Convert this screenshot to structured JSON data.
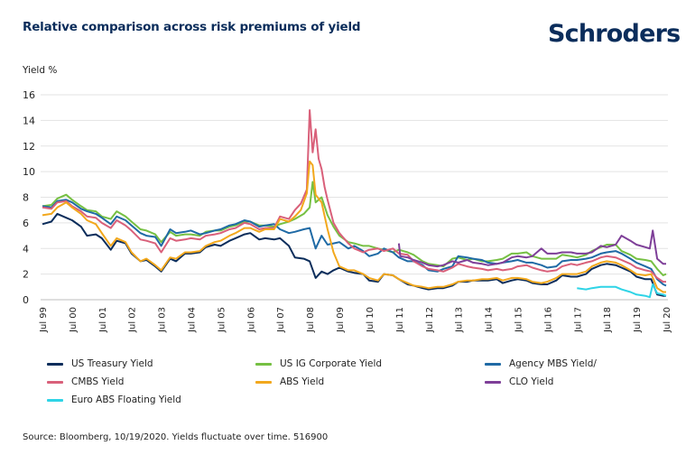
{
  "header": {
    "title": "Relative comparison across risk premiums of yield",
    "logo": "Schroders"
  },
  "footer": {
    "source": "Source: Bloomberg, 10/19/2020. Yields fluctuate over time. 516900"
  },
  "chart_data": {
    "type": "line",
    "title": "Relative comparison across risk premiums of yield",
    "xlabel": "",
    "ylabel": "Yield %",
    "ylim": [
      0,
      16
    ],
    "xlim": [
      1999.5,
      2020.5
    ],
    "yticks": [
      0,
      2,
      4,
      6,
      8,
      10,
      12,
      14,
      16
    ],
    "ytick_labels": [
      "0",
      "2",
      "4",
      "6",
      "8",
      "10",
      "12",
      "14",
      "16"
    ],
    "xticks": [
      1999.5,
      2000.5,
      2001.5,
      2002.5,
      2003.5,
      2004.5,
      2005.5,
      2006.5,
      2007.5,
      2008.5,
      2009.5,
      2010.5,
      2011.5,
      2012.5,
      2013.5,
      2014.5,
      2015.5,
      2016.5,
      2017.5,
      2018.5,
      2019.5,
      2020.5
    ],
    "xtick_labels": [
      "Jul 99",
      "Jul 00",
      "Jul 01",
      "Jul 02",
      "Jul 03",
      "Jul 04",
      "Jul 05",
      "Jul 06",
      "Jul 07",
      "Jul 08",
      "Jul 09",
      "Jul 10",
      "Jul 11",
      "Jul 12",
      "Jul 13",
      "Jul 14",
      "Jul 15",
      "Jul 16",
      "Jul 17",
      "Jul 18",
      "Jul 19",
      "Jul 20"
    ],
    "grid": "horizontal",
    "legend_position": "bottom",
    "series": [
      {
        "name": "US Treasury Yield",
        "color": "#0b2d5b",
        "x": [
          1999.5,
          1999.8,
          2000.0,
          2000.3,
          2000.5,
          2000.8,
          2001.0,
          2001.3,
          2001.5,
          2001.8,
          2002.0,
          2002.3,
          2002.5,
          2002.8,
          2003.0,
          2003.3,
          2003.5,
          2003.8,
          2004.0,
          2004.3,
          2004.5,
          2004.8,
          2005.0,
          2005.3,
          2005.5,
          2005.8,
          2006.0,
          2006.3,
          2006.5,
          2006.8,
          2007.0,
          2007.3,
          2007.5,
          2007.8,
          2008.0,
          2008.3,
          2008.5,
          2008.7,
          2008.9,
          2009.1,
          2009.3,
          2009.5,
          2009.8,
          2010.0,
          2010.3,
          2010.5,
          2010.8,
          2011.0,
          2011.3,
          2011.5,
          2011.8,
          2012.0,
          2012.3,
          2012.5,
          2012.8,
          2013.0,
          2013.3,
          2013.5,
          2013.8,
          2014.0,
          2014.3,
          2014.5,
          2014.8,
          2015.0,
          2015.3,
          2015.5,
          2015.8,
          2016.0,
          2016.3,
          2016.5,
          2016.8,
          2017.0,
          2017.3,
          2017.5,
          2017.8,
          2018.0,
          2018.3,
          2018.5,
          2018.8,
          2019.0,
          2019.3,
          2019.5,
          2019.8,
          2020.0,
          2020.2,
          2020.4,
          2020.5
        ],
        "values": [
          5.9,
          6.1,
          6.7,
          6.4,
          6.2,
          5.7,
          5.0,
          5.1,
          4.8,
          3.9,
          4.6,
          4.4,
          3.6,
          3.0,
          3.1,
          2.6,
          2.2,
          3.2,
          3.0,
          3.6,
          3.6,
          3.7,
          4.1,
          4.3,
          4.2,
          4.6,
          4.8,
          5.1,
          5.2,
          4.7,
          4.8,
          4.7,
          4.8,
          4.2,
          3.3,
          3.2,
          3.0,
          1.7,
          2.2,
          2.0,
          2.3,
          2.5,
          2.2,
          2.1,
          2.0,
          1.5,
          1.4,
          2.0,
          1.9,
          1.6,
          1.2,
          1.1,
          0.9,
          0.8,
          0.9,
          0.9,
          1.1,
          1.4,
          1.4,
          1.5,
          1.5,
          1.5,
          1.6,
          1.3,
          1.5,
          1.6,
          1.5,
          1.3,
          1.2,
          1.2,
          1.5,
          1.9,
          1.8,
          1.8,
          2.0,
          2.4,
          2.7,
          2.8,
          2.7,
          2.5,
          2.2,
          1.8,
          1.6,
          1.6,
          0.4,
          0.3,
          0.3
        ]
      },
      {
        "name": "US IG Corporate Yield",
        "color": "#76c043",
        "x": [
          1999.5,
          1999.8,
          2000.0,
          2000.3,
          2000.5,
          2000.8,
          2001.0,
          2001.3,
          2001.5,
          2001.8,
          2002.0,
          2002.3,
          2002.5,
          2002.8,
          2003.0,
          2003.3,
          2003.5,
          2003.8,
          2004.0,
          2004.3,
          2004.5,
          2004.8,
          2005.0,
          2005.3,
          2005.5,
          2005.8,
          2006.0,
          2006.3,
          2006.5,
          2006.8,
          2007.0,
          2007.3,
          2007.5,
          2007.8,
          2008.0,
          2008.3,
          2008.5,
          2008.6,
          2008.7,
          2008.9,
          2009.1,
          2009.3,
          2009.5,
          2009.8,
          2010.0,
          2010.3,
          2010.5,
          2010.8,
          2011.0,
          2011.3,
          2011.5,
          2011.8,
          2012.0,
          2012.3,
          2012.5,
          2012.8,
          2013.0,
          2013.3,
          2013.5,
          2013.8,
          2014.0,
          2014.3,
          2014.5,
          2014.8,
          2015.0,
          2015.3,
          2015.5,
          2015.8,
          2016.0,
          2016.3,
          2016.5,
          2016.8,
          2017.0,
          2017.3,
          2017.5,
          2017.8,
          2018.0,
          2018.3,
          2018.5,
          2018.8,
          2019.0,
          2019.3,
          2019.5,
          2019.8,
          2020.0,
          2020.2,
          2020.4,
          2020.5
        ],
        "values": [
          7.3,
          7.4,
          7.9,
          8.2,
          7.8,
          7.3,
          7.0,
          6.9,
          6.5,
          6.3,
          6.9,
          6.5,
          6.1,
          5.5,
          5.4,
          5.1,
          4.5,
          5.3,
          5.0,
          5.1,
          5.1,
          5.0,
          5.3,
          5.4,
          5.4,
          5.7,
          5.8,
          6.1,
          6.1,
          5.8,
          5.8,
          5.7,
          5.9,
          6.1,
          6.3,
          6.7,
          7.2,
          9.2,
          7.6,
          8.0,
          6.6,
          5.7,
          5.0,
          4.5,
          4.4,
          4.2,
          4.2,
          4.0,
          3.9,
          3.7,
          3.9,
          3.7,
          3.5,
          3.0,
          2.8,
          2.7,
          2.6,
          3.2,
          3.3,
          3.1,
          3.2,
          3.0,
          3.0,
          3.1,
          3.2,
          3.6,
          3.6,
          3.7,
          3.4,
          3.2,
          3.2,
          3.2,
          3.5,
          3.4,
          3.3,
          3.5,
          3.8,
          4.1,
          4.3,
          4.3,
          3.8,
          3.5,
          3.2,
          3.1,
          3.0,
          2.4,
          1.9,
          2.0
        ]
      },
      {
        "name": "Agency MBS Yield/",
        "color": "#1f6aa5",
        "x": [
          1999.5,
          1999.8,
          2000.0,
          2000.3,
          2000.5,
          2000.8,
          2001.0,
          2001.3,
          2001.5,
          2001.8,
          2002.0,
          2002.3,
          2002.5,
          2002.8,
          2003.0,
          2003.3,
          2003.5,
          2003.8,
          2004.0,
          2004.3,
          2004.5,
          2004.8,
          2005.0,
          2005.3,
          2005.5,
          2005.8,
          2006.0,
          2006.3,
          2006.5,
          2006.8,
          2007.0,
          2007.3,
          2007.5,
          2007.8,
          2008.0,
          2008.3,
          2008.5,
          2008.7,
          2008.9,
          2009.1,
          2009.3,
          2009.5,
          2009.8,
          2010.0,
          2010.3,
          2010.5,
          2010.8,
          2011.0,
          2011.3,
          2011.5,
          2011.8,
          2012.0,
          2012.3,
          2012.5,
          2012.8,
          2013.0,
          2013.3,
          2013.5,
          2013.8,
          2014.0,
          2014.3,
          2014.5,
          2014.8,
          2015.0,
          2015.3,
          2015.5,
          2015.8,
          2016.0,
          2016.3,
          2016.5,
          2016.8,
          2017.0,
          2017.3,
          2017.5,
          2017.8,
          2018.0,
          2018.3,
          2018.5,
          2018.8,
          2019.0,
          2019.3,
          2019.5,
          2019.8,
          2020.0,
          2020.2,
          2020.4,
          2020.5
        ],
        "values": [
          7.3,
          7.2,
          7.7,
          7.8,
          7.6,
          7.1,
          6.9,
          6.7,
          6.4,
          5.9,
          6.5,
          6.2,
          5.8,
          5.2,
          5.0,
          4.9,
          4.2,
          5.5,
          5.2,
          5.3,
          5.4,
          5.1,
          5.2,
          5.4,
          5.5,
          5.8,
          5.9,
          6.2,
          6.1,
          5.7,
          5.8,
          5.9,
          5.5,
          5.2,
          5.3,
          5.5,
          5.6,
          4.0,
          5.0,
          4.3,
          4.4,
          4.5,
          4.0,
          4.2,
          3.8,
          3.4,
          3.6,
          4.0,
          3.7,
          3.3,
          3.0,
          3.0,
          2.7,
          2.3,
          2.2,
          2.4,
          2.6,
          3.4,
          3.3,
          3.2,
          3.1,
          2.9,
          2.8,
          2.9,
          3.0,
          3.1,
          2.9,
          2.9,
          2.7,
          2.5,
          2.6,
          3.0,
          3.1,
          3.1,
          3.2,
          3.3,
          3.6,
          3.7,
          3.8,
          3.6,
          3.2,
          2.9,
          2.6,
          2.4,
          1.6,
          1.2,
          1.1
        ]
      },
      {
        "name": "CMBS Yield",
        "color": "#d9607a",
        "x": [
          1999.5,
          1999.8,
          2000.0,
          2000.3,
          2000.5,
          2000.8,
          2001.0,
          2001.3,
          2001.5,
          2001.8,
          2002.0,
          2002.3,
          2002.5,
          2002.8,
          2003.0,
          2003.3,
          2003.5,
          2003.8,
          2004.0,
          2004.3,
          2004.5,
          2004.8,
          2005.0,
          2005.3,
          2005.5,
          2005.8,
          2006.0,
          2006.3,
          2006.5,
          2006.8,
          2007.0,
          2007.3,
          2007.5,
          2007.8,
          2008.0,
          2008.2,
          2008.4,
          2008.5,
          2008.6,
          2008.7,
          2008.8,
          2008.9,
          2009.0,
          2009.1,
          2009.3,
          2009.5,
          2009.8,
          2010.0,
          2010.3,
          2010.5,
          2010.8,
          2011.0,
          2011.3,
          2011.5,
          2011.8,
          2012.0,
          2012.3,
          2012.5,
          2012.8,
          2013.0,
          2013.3,
          2013.5,
          2013.8,
          2014.0,
          2014.3,
          2014.5,
          2014.8,
          2015.0,
          2015.3,
          2015.5,
          2015.8,
          2016.0,
          2016.3,
          2016.5,
          2016.8,
          2017.0,
          2017.3,
          2017.5,
          2017.8,
          2018.0,
          2018.3,
          2018.5,
          2018.8,
          2019.0,
          2019.3,
          2019.5,
          2019.8,
          2020.0,
          2020.2,
          2020.4,
          2020.5
        ],
        "values": [
          7.2,
          7.1,
          7.6,
          7.7,
          7.3,
          6.9,
          6.5,
          6.4,
          6.0,
          5.6,
          6.2,
          5.8,
          5.4,
          4.7,
          4.6,
          4.4,
          3.7,
          4.8,
          4.6,
          4.7,
          4.8,
          4.7,
          5.0,
          5.1,
          5.2,
          5.5,
          5.6,
          6.0,
          5.9,
          5.5,
          5.6,
          5.6,
          6.5,
          6.3,
          7.0,
          7.5,
          8.6,
          14.8,
          11.5,
          13.3,
          11.0,
          10.2,
          8.8,
          7.8,
          6.0,
          5.2,
          4.4,
          4.0,
          3.7,
          3.9,
          4.0,
          3.8,
          4.0,
          3.6,
          3.5,
          3.0,
          2.6,
          2.4,
          2.3,
          2.2,
          2.5,
          2.8,
          2.6,
          2.5,
          2.4,
          2.3,
          2.4,
          2.3,
          2.4,
          2.6,
          2.7,
          2.5,
          2.3,
          2.2,
          2.3,
          2.6,
          2.8,
          2.7,
          2.9,
          3.0,
          3.3,
          3.4,
          3.3,
          3.1,
          2.8,
          2.5,
          2.3,
          2.2,
          1.7,
          1.4,
          1.4
        ]
      },
      {
        "name": "ABS Yield",
        "color": "#f2a81d",
        "x": [
          1999.5,
          1999.8,
          2000.0,
          2000.3,
          2000.5,
          2000.8,
          2001.0,
          2001.3,
          2001.5,
          2001.8,
          2002.0,
          2002.3,
          2002.5,
          2002.8,
          2003.0,
          2003.3,
          2003.5,
          2003.8,
          2004.0,
          2004.3,
          2004.5,
          2004.8,
          2005.0,
          2005.3,
          2005.5,
          2005.8,
          2006.0,
          2006.3,
          2006.5,
          2006.8,
          2007.0,
          2007.3,
          2007.5,
          2007.8,
          2008.0,
          2008.2,
          2008.4,
          2008.5,
          2008.6,
          2008.7,
          2008.9,
          2009.1,
          2009.3,
          2009.5,
          2009.8,
          2010.0,
          2010.3,
          2010.5,
          2010.8,
          2011.0,
          2011.3,
          2011.5,
          2011.8,
          2012.0,
          2012.3,
          2012.5,
          2012.8,
          2013.0,
          2013.3,
          2013.5,
          2013.8,
          2014.0,
          2014.3,
          2014.5,
          2014.8,
          2015.0,
          2015.3,
          2015.5,
          2015.8,
          2016.0,
          2016.3,
          2016.5,
          2016.8,
          2017.0,
          2017.3,
          2017.5,
          2017.8,
          2018.0,
          2018.3,
          2018.5,
          2018.8,
          2019.0,
          2019.3,
          2019.5,
          2019.8,
          2020.0,
          2020.2,
          2020.4,
          2020.5
        ],
        "values": [
          6.6,
          6.7,
          7.2,
          7.6,
          7.2,
          6.7,
          6.2,
          5.9,
          5.2,
          4.2,
          4.8,
          4.5,
          3.7,
          3.0,
          3.2,
          2.7,
          2.3,
          3.3,
          3.2,
          3.7,
          3.7,
          3.8,
          4.2,
          4.5,
          4.6,
          5.0,
          5.2,
          5.6,
          5.6,
          5.3,
          5.5,
          5.5,
          6.3,
          6.1,
          6.5,
          7.0,
          8.3,
          10.8,
          10.5,
          8.2,
          7.6,
          5.5,
          3.7,
          2.6,
          2.3,
          2.3,
          2.0,
          1.7,
          1.5,
          2.0,
          1.9,
          1.6,
          1.3,
          1.1,
          1.0,
          0.9,
          1.0,
          1.0,
          1.2,
          1.4,
          1.5,
          1.5,
          1.6,
          1.6,
          1.7,
          1.5,
          1.7,
          1.7,
          1.6,
          1.4,
          1.3,
          1.4,
          1.7,
          2.0,
          2.0,
          2.0,
          2.2,
          2.6,
          2.9,
          3.0,
          2.9,
          2.7,
          2.3,
          2.0,
          1.9,
          2.0,
          0.9,
          0.6,
          0.6
        ]
      },
      {
        "name": "CLO Yield",
        "color": "#7e3f98",
        "x": [
          2011.5,
          2011.55,
          2011.8,
          2012.0,
          2012.3,
          2012.5,
          2012.8,
          2013.0,
          2013.3,
          2013.5,
          2013.8,
          2014.0,
          2014.3,
          2014.5,
          2014.8,
          2015.0,
          2015.3,
          2015.5,
          2015.8,
          2016.0,
          2016.3,
          2016.5,
          2016.8,
          2017.0,
          2017.3,
          2017.5,
          2017.8,
          2018.0,
          2018.3,
          2018.5,
          2018.8,
          2019.0,
          2019.3,
          2019.5,
          2019.8,
          2019.95,
          2020.05,
          2020.2,
          2020.4,
          2020.5
        ],
        "values": [
          4.4,
          3.4,
          3.3,
          3.1,
          2.9,
          2.7,
          2.6,
          2.7,
          3.0,
          2.9,
          3.1,
          2.9,
          2.8,
          2.7,
          2.8,
          2.9,
          3.3,
          3.4,
          3.3,
          3.4,
          4.0,
          3.6,
          3.6,
          3.7,
          3.7,
          3.6,
          3.6,
          3.7,
          4.2,
          4.1,
          4.3,
          5.0,
          4.6,
          4.3,
          4.1,
          4.0,
          5.4,
          3.2,
          2.8,
          2.8
        ]
      },
      {
        "name": "Euro ABS Floating Yield",
        "color": "#2fd4e6",
        "x": [
          2017.5,
          2017.8,
          2018.0,
          2018.3,
          2018.5,
          2018.8,
          2019.0,
          2019.3,
          2019.5,
          2019.8,
          2019.95,
          2020.05,
          2020.2,
          2020.4,
          2020.5
        ],
        "values": [
          0.9,
          0.8,
          0.9,
          1.0,
          1.0,
          1.0,
          0.8,
          0.6,
          0.4,
          0.3,
          0.2,
          1.2,
          0.5,
          0.4,
          0.3
        ]
      }
    ]
  }
}
